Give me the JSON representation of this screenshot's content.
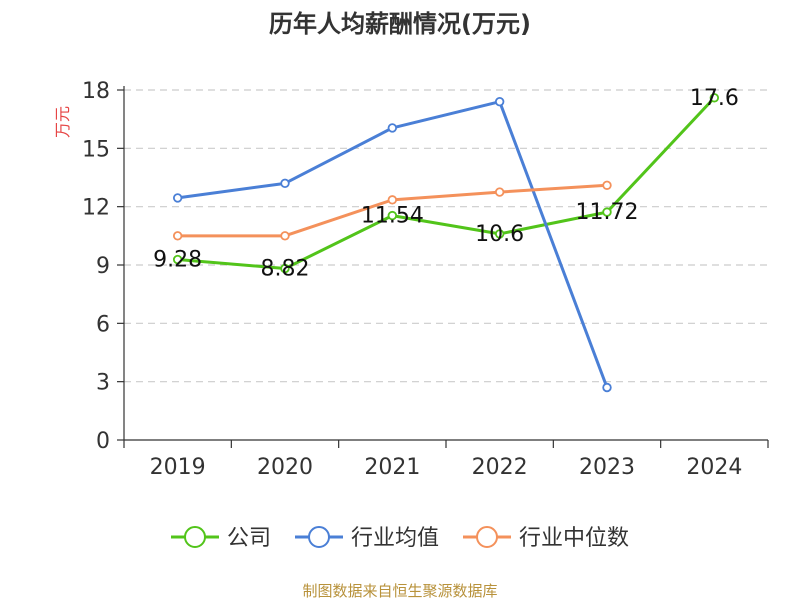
{
  "chart_data": {
    "type": "line",
    "title": "历年人均薪酬情况(万元)",
    "ylabel": "万元",
    "categories": [
      "2019",
      "2020",
      "2021",
      "2022",
      "2023",
      "2024"
    ],
    "yticks": [
      "0",
      "3",
      "6",
      "9",
      "12",
      "15",
      "18"
    ],
    "ylim": [
      0,
      18
    ],
    "grid": true,
    "legend_position": "bottom",
    "series": [
      {
        "name": "公司",
        "values": [
          9.28,
          8.82,
          11.54,
          10.6,
          11.72,
          17.6
        ],
        "color": "#52c41a",
        "labels": [
          "9.28",
          "8.82",
          "11.54",
          "10.6",
          "11.72",
          "17.6"
        ]
      },
      {
        "name": "行业均值",
        "values": [
          12.45,
          13.2,
          16.05,
          17.4,
          2.7,
          null
        ],
        "color": "#4a7fd6"
      },
      {
        "name": "行业中位数",
        "values": [
          10.5,
          10.5,
          12.35,
          12.75,
          13.1,
          null
        ],
        "color": "#f4915b"
      }
    ],
    "source": "制图数据来自恒生聚源数据库",
    "colors": {
      "unit": "#e64545",
      "source": "#b8923b",
      "axis": "#333333",
      "grid": "#cccccc"
    }
  }
}
